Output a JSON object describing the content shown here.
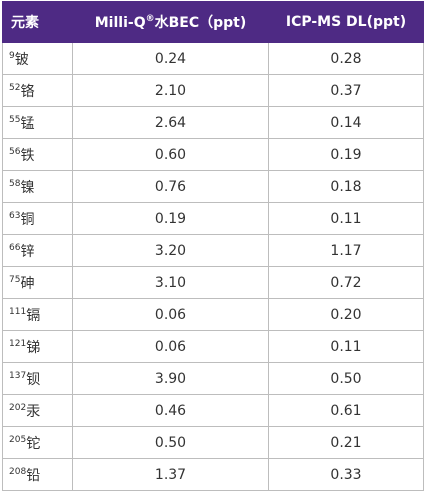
{
  "table": {
    "header": [
      {
        "text": "元素"
      },
      {
        "text": "Milli-Q",
        "sup": "®",
        "rest": "水BEC（ppt)"
      },
      {
        "text": "ICP-MS DL(ppt)"
      }
    ],
    "rows": [
      [
        {
          "mass": "9",
          "name": "铍"
        },
        "0.24",
        "0.28"
      ],
      [
        {
          "mass": "52",
          "name": "铬"
        },
        "2.10",
        "0.37"
      ],
      [
        {
          "mass": "55",
          "name": "锰"
        },
        "2.64",
        "0.14"
      ],
      [
        {
          "mass": "56",
          "name": "铁"
        },
        "0.60",
        "0.19"
      ],
      [
        {
          "mass": "58",
          "name": "镍"
        },
        "0.76",
        "0.18"
      ],
      [
        {
          "mass": "63",
          "name": "铜"
        },
        "0.19",
        "0.11"
      ],
      [
        {
          "mass": "66",
          "name": "锌"
        },
        "3.20",
        "1.17"
      ],
      [
        {
          "mass": "75",
          "name": "砷"
        },
        "3.10",
        "0.72"
      ],
      [
        {
          "mass": "111",
          "name": "镉"
        },
        "0.06",
        "0.20"
      ],
      [
        {
          "mass": "121",
          "name": "锑"
        },
        "0.06",
        "0.11"
      ],
      [
        {
          "mass": "137",
          "name": "钡"
        },
        "3.90",
        "0.50"
      ],
      [
        {
          "mass": "202",
          "name": "汞"
        },
        "0.46",
        "0.61"
      ],
      [
        {
          "mass": "205",
          "name": "铊"
        },
        "0.50",
        "0.21"
      ],
      [
        {
          "mass": "208",
          "name": "铅"
        },
        "1.37",
        "0.33"
      ]
    ]
  }
}
